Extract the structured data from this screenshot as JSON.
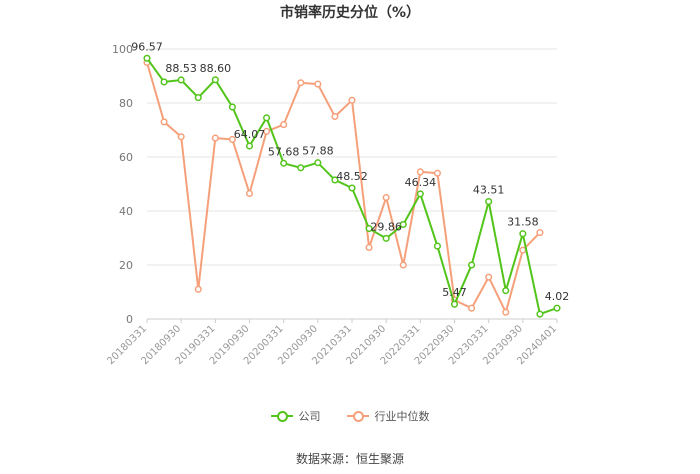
{
  "chart_data": {
    "type": "line",
    "title": "市销率历史分位（%）",
    "source": "数据来源：恒生聚源",
    "ylim": [
      0,
      100
    ],
    "yticks": [
      0,
      20,
      40,
      60,
      80,
      100
    ],
    "categories": [
      "20180331",
      "20180630",
      "20180930",
      "20181231",
      "20190331",
      "20190630",
      "20190930",
      "20191231",
      "20200331",
      "20200630",
      "20200930",
      "20201231",
      "20210331",
      "20210630",
      "20210930",
      "20211231",
      "20220331",
      "20220630",
      "20220930",
      "20221231",
      "20230331",
      "20230630",
      "20230930",
      "20231231",
      "20240401"
    ],
    "xtick_labels": [
      "20180331",
      "20180930",
      "20190331",
      "20190930",
      "20200331",
      "20200930",
      "20210331",
      "20210930",
      "20220331",
      "20220930",
      "20230331",
      "20230930",
      "20240401"
    ],
    "series": [
      {
        "name": "公司",
        "color": "#52c41a",
        "values": [
          96.57,
          87.8,
          88.53,
          82.0,
          88.6,
          78.5,
          64.07,
          74.5,
          57.68,
          56.0,
          57.88,
          51.5,
          48.52,
          33.5,
          29.86,
          35.0,
          46.34,
          27.0,
          5.47,
          20.0,
          43.51,
          10.5,
          31.58,
          1.8,
          4.02
        ],
        "labels": {
          "0": "96.57",
          "2": "88.53",
          "4": "88.60",
          "6": "64.07",
          "8": "57.68",
          "10": "57.88",
          "12": "48.52",
          "14": "29.86",
          "16": "46.34",
          "18": "5.47",
          "20": "43.51",
          "22": "31.58",
          "24": "4.02"
        }
      },
      {
        "name": "行业中位数",
        "color": "#f5a07a",
        "values": [
          95.0,
          73.0,
          67.5,
          11.0,
          67.0,
          66.5,
          46.5,
          69.5,
          72.0,
          87.5,
          87.0,
          75.0,
          81.0,
          26.5,
          45.0,
          20.0,
          54.5,
          54.0,
          7.0,
          4.0,
          15.5,
          2.5,
          25.5,
          32.0,
          null
        ]
      }
    ],
    "grid": true,
    "legend_position": "bottom"
  }
}
